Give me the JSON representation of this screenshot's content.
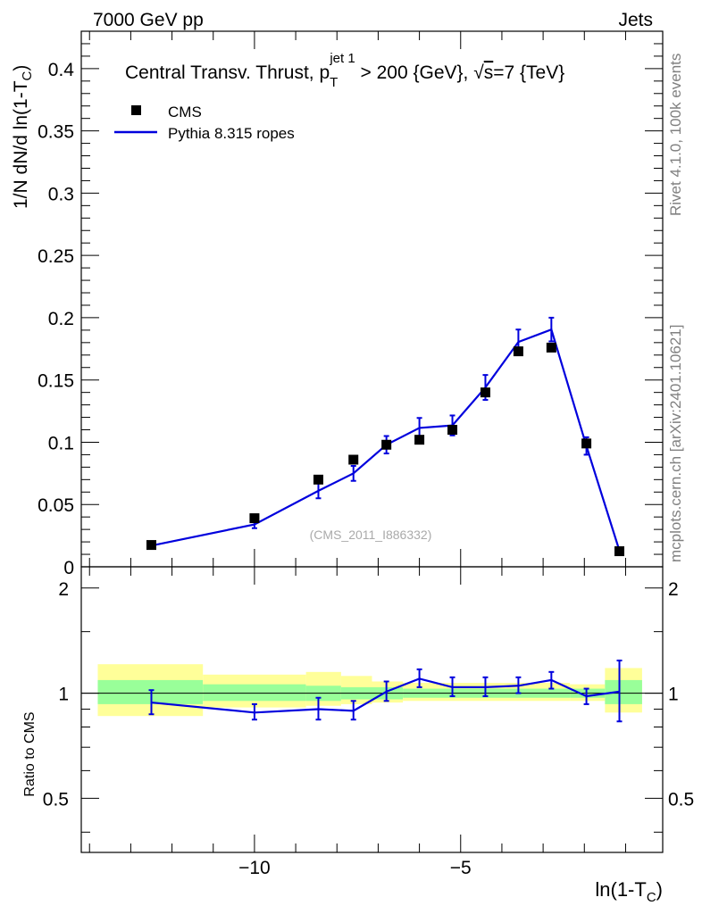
{
  "header": {
    "left": "7000 GeV pp",
    "right": "Jets"
  },
  "side_labels": {
    "rivet": "Rivet 4.1.0,  100k events",
    "mcplots": "mcplots.cern.ch [arXiv:2401.10621]"
  },
  "colors": {
    "data": "#000000",
    "mc": "#0000dd",
    "band_inner": "#99ff99",
    "band_outer": "#ffff99"
  },
  "chart_data": [
    {
      "type": "scatter",
      "panel": "main",
      "title": {
        "prefix": "Central Transv. Thrust, p",
        "sub": "T",
        "sup": "jet 1",
        "mid": " > 200 {GeV}, ",
        "sqrt": "√",
        "s": "s",
        "suffix": "=7 {TeV}"
      },
      "ylabel": {
        "main": "1/N    dN/d ln(1-T",
        "sub": "C",
        "close": ")"
      },
      "watermark": "(CMS_2011_I886332)",
      "ylim": [
        0,
        0.43
      ],
      "yticks": [
        0,
        0.05,
        0.1,
        0.15,
        0.2,
        0.25,
        0.3,
        0.35,
        0.4
      ],
      "ytick_labels": [
        "0",
        "0.05",
        "0.1",
        "0.15",
        "0.2",
        "0.25",
        "0.3",
        "0.35",
        "0.4"
      ],
      "legend": {
        "position": "top-left",
        "entries": [
          "CMS",
          "Pythia 8.315 ropes"
        ]
      },
      "series": [
        {
          "name": "CMS",
          "style": "markers",
          "x": [
            -12.5,
            -10.0,
            -8.45,
            -7.6,
            -6.8,
            -6.0,
            -5.2,
            -4.4,
            -3.6,
            -2.8,
            -1.95,
            -1.15
          ],
          "y": [
            0.0175,
            0.039,
            0.07,
            0.086,
            0.098,
            0.102,
            0.11,
            0.14,
            0.173,
            0.176,
            0.099,
            0.0125
          ]
        },
        {
          "name": "Pythia 8.315 ropes",
          "style": "line",
          "x": [
            -12.5,
            -10.0,
            -8.45,
            -7.6,
            -6.8,
            -6.0,
            -5.2,
            -4.4,
            -3.6,
            -2.8,
            -1.95,
            -1.15
          ],
          "y": [
            0.017,
            0.034,
            0.061,
            0.075,
            0.098,
            0.1115,
            0.1135,
            0.144,
            0.1805,
            0.1905,
            0.097,
            0.013
          ],
          "yerr": [
            0.0015,
            0.003,
            0.006,
            0.006,
            0.007,
            0.008,
            0.008,
            0.01,
            0.01,
            0.0095,
            0.007,
            0.002
          ]
        }
      ]
    },
    {
      "type": "line",
      "panel": "ratio",
      "ylabel": "Ratio to CMS",
      "xlabel": {
        "main": "ln(1-T",
        "sub": "C",
        "close": ")"
      },
      "xlim": [
        -14.2,
        -0.1
      ],
      "xticks": [
        -10,
        -5
      ],
      "xtick_labels": [
        "−10",
        "−5"
      ],
      "ylim": [
        0.35,
        2.3
      ],
      "yscale": "log",
      "yticks": [
        0.5,
        1,
        2
      ],
      "ytick_labels_left": [
        "0.5",
        "1",
        "2"
      ],
      "ytick_labels_right": [
        "0.5",
        "1",
        "2"
      ],
      "reference_line": 1.0,
      "bands": [
        {
          "x_from": -13.8,
          "x_to": -11.25,
          "outer": [
            0.86,
            1.21
          ],
          "inner": [
            0.93,
            1.09
          ]
        },
        {
          "x_from": -11.25,
          "x_to": -8.75,
          "outer": [
            0.91,
            1.13
          ],
          "inner": [
            0.95,
            1.06
          ]
        },
        {
          "x_from": -8.75,
          "x_to": -7.9,
          "outer": [
            0.92,
            1.15
          ],
          "inner": [
            0.95,
            1.05
          ]
        },
        {
          "x_from": -7.9,
          "x_to": -7.15,
          "outer": [
            0.93,
            1.12
          ],
          "inner": [
            0.96,
            1.04
          ]
        },
        {
          "x_from": -7.15,
          "x_to": -6.4,
          "outer": [
            0.94,
            1.08
          ],
          "inner": [
            0.96,
            1.04
          ]
        },
        {
          "x_from": -6.4,
          "x_to": -2.35,
          "outer": [
            0.95,
            1.07
          ],
          "inner": [
            0.97,
            1.03
          ]
        },
        {
          "x_from": -2.35,
          "x_to": -1.5,
          "outer": [
            0.95,
            1.06
          ],
          "inner": [
            0.97,
            1.03
          ]
        },
        {
          "x_from": -1.5,
          "x_to": -0.6,
          "outer": [
            0.88,
            1.18
          ],
          "inner": [
            0.93,
            1.09
          ]
        }
      ],
      "series": [
        {
          "name": "Pythia 8.315 ropes / CMS",
          "x": [
            -12.5,
            -10.0,
            -8.45,
            -7.6,
            -6.8,
            -6.0,
            -5.2,
            -4.4,
            -3.6,
            -2.8,
            -1.95,
            -1.15
          ],
          "y": [
            0.94,
            0.88,
            0.9,
            0.89,
            1.01,
            1.1,
            1.04,
            1.04,
            1.05,
            1.09,
            0.98,
            1.01
          ],
          "yerr_low": [
            0.07,
            0.04,
            0.06,
            0.05,
            0.06,
            0.06,
            0.06,
            0.06,
            0.05,
            0.06,
            0.05,
            0.18
          ],
          "yerr_high": [
            0.08,
            0.05,
            0.07,
            0.06,
            0.07,
            0.07,
            0.07,
            0.07,
            0.06,
            0.06,
            0.05,
            0.23
          ]
        }
      ]
    }
  ]
}
